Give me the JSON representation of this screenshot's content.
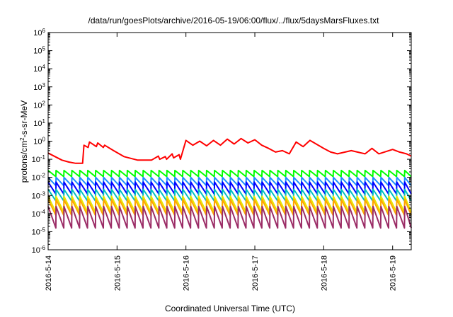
{
  "chart_data": {
    "type": "line",
    "title": "/data/run/goesPlots/archive/2016-05-19/06:00/flux/../flux/5daysMarsFluxes.txt",
    "xlabel": "Coordinated Universal Time (UTC)",
    "ylabel": {
      "pre": "protons/cm",
      "sup": "2",
      "post": "-s-sr-MeV"
    },
    "yscale": "log",
    "ylim_exponent": [
      -6,
      6
    ],
    "yticks": [
      {
        "base": "10",
        "exp": "-6"
      },
      {
        "base": "10",
        "exp": "-5"
      },
      {
        "base": "10",
        "exp": "-4"
      },
      {
        "base": "10",
        "exp": "-3"
      },
      {
        "base": "10",
        "exp": "-2"
      },
      {
        "base": "10",
        "exp": "-1"
      },
      {
        "base": "10",
        "exp": "0"
      },
      {
        "base": "10",
        "exp": "1"
      },
      {
        "base": "10",
        "exp": "2"
      },
      {
        "base": "10",
        "exp": "3"
      },
      {
        "base": "10",
        "exp": "4"
      },
      {
        "base": "10",
        "exp": "5"
      },
      {
        "base": "10",
        "exp": "6"
      }
    ],
    "xlim_days": [
      0,
      5.27
    ],
    "xticks": [
      {
        "label": "2016-5-14",
        "day": 0
      },
      {
        "label": "2016-5-15",
        "day": 1
      },
      {
        "label": "2016-5-16",
        "day": 2
      },
      {
        "label": "2016-5-17",
        "day": 3
      },
      {
        "label": "2016-5-18",
        "day": 4
      },
      {
        "label": "2016-5-19",
        "day": 5
      }
    ],
    "grid": false,
    "legend": "none",
    "series": [
      {
        "color": "#ff0000",
        "x": [
          0,
          0.2,
          0.3,
          0.4,
          0.5,
          0.52,
          0.58,
          0.6,
          0.7,
          0.72,
          0.8,
          0.82,
          0.95,
          1.1,
          1.3,
          1.5,
          1.6,
          1.62,
          1.7,
          1.72,
          1.8,
          1.82,
          1.9,
          1.92,
          2.0,
          2.1,
          2.2,
          2.3,
          2.4,
          2.5,
          2.6,
          2.7,
          2.8,
          2.9,
          3.0,
          3.1,
          3.2,
          3.3,
          3.4,
          3.5,
          3.6,
          3.7,
          3.8,
          4.0,
          4.1,
          4.2,
          4.4,
          4.6,
          4.7,
          4.8,
          5.0,
          5.1,
          5.2,
          5.27
        ],
        "y": [
          0.22,
          0.09,
          0.07,
          0.06,
          0.06,
          0.6,
          0.45,
          0.9,
          0.5,
          0.8,
          0.45,
          0.6,
          0.3,
          0.14,
          0.09,
          0.09,
          0.15,
          0.1,
          0.14,
          0.1,
          0.2,
          0.12,
          0.18,
          0.1,
          1.1,
          0.6,
          1.0,
          0.55,
          1.1,
          0.6,
          1.3,
          0.7,
          1.4,
          0.8,
          1.2,
          0.6,
          0.4,
          0.25,
          0.3,
          0.2,
          0.9,
          0.5,
          1.1,
          0.4,
          0.25,
          0.2,
          0.3,
          0.2,
          0.4,
          0.2,
          0.35,
          0.25,
          0.2,
          0.15
        ]
      },
      {
        "color": "#00ff00",
        "base": 0.011,
        "peak": 0.024
      },
      {
        "color": "#1e8fff",
        "base": 0.0035,
        "peak": 0.01
      },
      {
        "color": "#0000ff",
        "base": 0.0012,
        "peak": 0.0055
      },
      {
        "color": "#00c0c0",
        "base": 0.0005,
        "peak": 0.0022
      },
      {
        "color": "#e8e800",
        "base": 0.00012,
        "peak": 0.0009
      },
      {
        "color": "#ffa500",
        "base": 8e-05,
        "peak": 0.0006
      },
      {
        "color": "#9b2c66",
        "base": 1.6e-05,
        "peak": 0.00025
      }
    ]
  }
}
